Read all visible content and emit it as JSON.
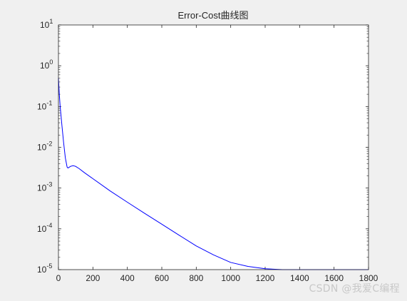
{
  "chart_data": {
    "type": "line",
    "title": "Error-Cost曲线图",
    "xlabel": "",
    "ylabel": "",
    "xlim": [
      0,
      1800
    ],
    "ylim": [
      1e-05,
      10
    ],
    "yscale": "log",
    "x_ticks": [
      "0",
      "200",
      "400",
      "600",
      "800",
      "1000",
      "1200",
      "1400",
      "1600",
      "1800"
    ],
    "y_ticks": [
      {
        "base": "10",
        "exp": "1"
      },
      {
        "base": "10",
        "exp": "0"
      },
      {
        "base": "10",
        "exp": "-1"
      },
      {
        "base": "10",
        "exp": "-2"
      },
      {
        "base": "10",
        "exp": "-3"
      },
      {
        "base": "10",
        "exp": "-4"
      },
      {
        "base": "10",
        "exp": "-5"
      }
    ],
    "grid": false,
    "series": [
      {
        "color": "#0000ff",
        "x": [
          0,
          5,
          10,
          20,
          30,
          40,
          50,
          55,
          60,
          70,
          80,
          90,
          100,
          120,
          150,
          200,
          300,
          400,
          500,
          600,
          700,
          800,
          900,
          1000,
          1100,
          1200,
          1300,
          1400,
          1500,
          1600,
          1700,
          1800
        ],
        "y": [
          0.5,
          0.2,
          0.1,
          0.035,
          0.013,
          0.0055,
          0.0033,
          0.0031,
          0.0032,
          0.0034,
          0.0035,
          0.0035,
          0.0034,
          0.003,
          0.0024,
          0.0017,
          0.00085,
          0.00045,
          0.00024,
          0.00013,
          7e-05,
          3.8e-05,
          2.3e-05,
          1.5e-05,
          1.2e-05,
          1.05e-05,
          1e-05,
          1e-05,
          1e-05,
          1e-05,
          1e-05,
          1e-05
        ]
      }
    ]
  },
  "watermark": "CSDN @我爱C编程"
}
